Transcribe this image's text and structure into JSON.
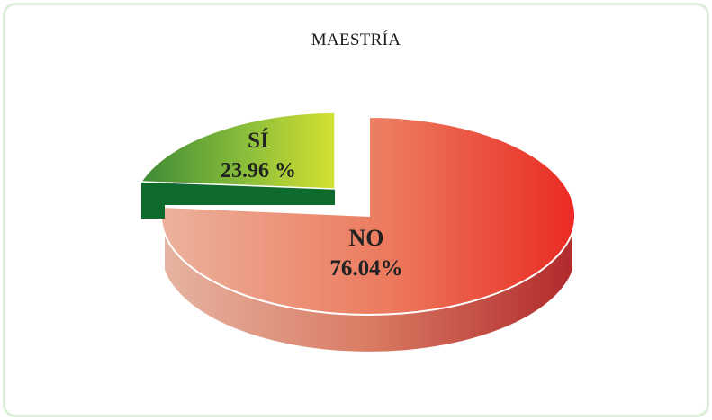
{
  "chart_data": {
    "type": "pie",
    "title": "MAESTRÍA",
    "slices": [
      {
        "name": "NO",
        "value": 76.04,
        "label": "76.04%",
        "color": "#e8553c"
      },
      {
        "name": "SÍ",
        "value": 23.96,
        "label": "23.96 %",
        "color": "#8cc63f"
      }
    ]
  }
}
